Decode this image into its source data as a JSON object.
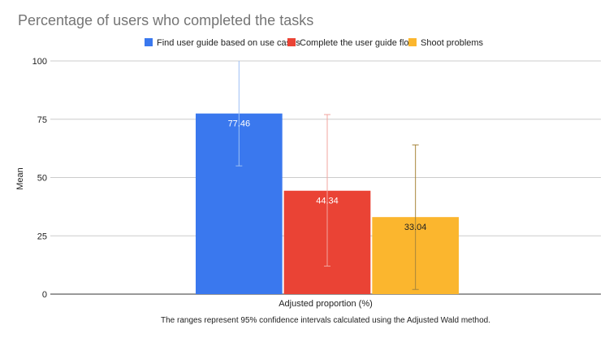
{
  "chart_data": {
    "type": "bar",
    "title": "Percentage of users who completed the tasks",
    "xlabel": "Adjusted proportion (%)",
    "ylabel": "Mean",
    "ylim": [
      0,
      100
    ],
    "yticks": [
      0,
      25,
      50,
      75,
      100
    ],
    "grid": true,
    "legend_position": "top",
    "categories": [
      "Adjusted proportion (%)"
    ],
    "series": [
      {
        "name": "Find user guide based on use cases",
        "values": [
          77.46
        ],
        "error_low": [
          55
        ],
        "error_high": [
          100
        ],
        "color": "#3a78ee",
        "error_color": "#9ec0f4",
        "label_color": "#ffffff"
      },
      {
        "name": "Complete the user guide flow",
        "values": [
          44.34
        ],
        "error_low": [
          12
        ],
        "error_high": [
          77
        ],
        "color": "#ea4335",
        "error_color": "#f2a59f",
        "label_color": "#ffffff"
      },
      {
        "name": "Shoot problems",
        "values": [
          33.04
        ],
        "error_low": [
          2
        ],
        "error_high": [
          64
        ],
        "color": "#fbb62e",
        "error_color": "#a7853a",
        "label_color": "#222222"
      }
    ],
    "data_labels": [
      "77.46",
      "44.34",
      "33.04"
    ],
    "footnote": "The ranges represent 95% confidence intervals calculated using the Adjusted Wald method."
  }
}
